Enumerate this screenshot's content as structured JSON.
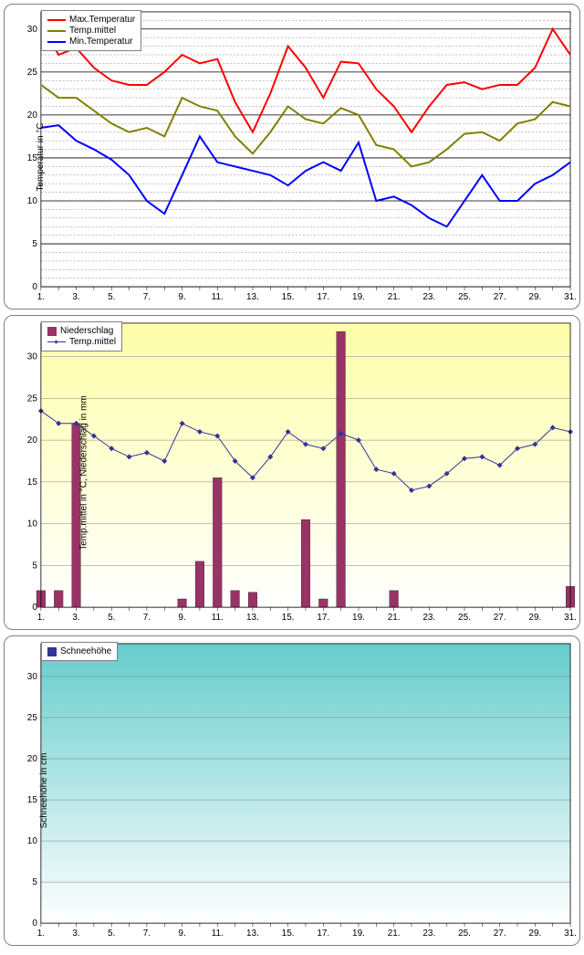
{
  "days": [
    1,
    2,
    3,
    4,
    5,
    6,
    7,
    8,
    9,
    10,
    11,
    12,
    13,
    14,
    15,
    16,
    17,
    18,
    19,
    20,
    21,
    22,
    23,
    24,
    25,
    26,
    27,
    28,
    29,
    30,
    31
  ],
  "xtick_labels": [
    "1.",
    "3.",
    "5.",
    "7.",
    "9.",
    "11.",
    "13.",
    "15.",
    "17.",
    "19.",
    "21.",
    "23.",
    "25.",
    "27.",
    "29.",
    "31."
  ],
  "xtick_days": [
    1,
    3,
    5,
    7,
    9,
    11,
    13,
    15,
    17,
    19,
    21,
    23,
    25,
    27,
    29,
    31
  ],
  "chart1": {
    "type": "line",
    "ylabel": "Temperatur in °C",
    "ylim": [
      0,
      32
    ],
    "ytick_step_major": 5,
    "ytick_step_minor": 1,
    "background": "#ffffff",
    "grid_major_color": "#000000",
    "grid_minor_color": "#808080",
    "grid_minor_dash": "2,2",
    "label_fontsize": 10,
    "tick_fontsize": 10,
    "line_width": 2,
    "series": [
      {
        "key": "max",
        "label": "Max.Temperatur",
        "color": "#ff0000",
        "values": [
          30.5,
          27.0,
          27.8,
          25.5,
          24.0,
          23.5,
          23.5,
          25.0,
          27.0,
          26.0,
          26.5,
          21.5,
          18.0,
          22.5,
          28.0,
          25.5,
          22.0,
          26.2,
          26.0,
          23.0,
          21.0,
          18.0,
          21.0,
          23.5,
          23.8,
          23.0,
          23.5,
          23.5,
          25.5,
          30.0,
          27.0
        ]
      },
      {
        "key": "mittel",
        "label": "Temp.mittel",
        "color": "#808000",
        "values": [
          23.5,
          22.0,
          22.0,
          20.5,
          19.0,
          18.0,
          18.5,
          17.5,
          22.0,
          21.0,
          20.5,
          17.5,
          15.5,
          18.0,
          21.0,
          19.5,
          19.0,
          20.8,
          20.0,
          16.5,
          16.0,
          14.0,
          14.5,
          16.0,
          17.8,
          18.0,
          17.0,
          19.0,
          19.5,
          21.5,
          21.0
        ]
      },
      {
        "key": "min",
        "label": "Min.Temperatur",
        "color": "#0000ff",
        "values": [
          18.5,
          18.8,
          17.0,
          16.0,
          14.8,
          13.0,
          10.0,
          8.5,
          13.0,
          17.5,
          14.5,
          14.0,
          13.5,
          13.0,
          11.8,
          13.5,
          14.5,
          13.5,
          16.8,
          10.0,
          10.5,
          9.5,
          8.0,
          7.0,
          10.0,
          13.0,
          10.0,
          10.0,
          12.0,
          13.0,
          14.5
        ]
      }
    ]
  },
  "chart2": {
    "type": "bar+line",
    "ylabel": "Temp.mittel  in °C, Niederschlag  in mm",
    "ylim": [
      0,
      34
    ],
    "ytick_step": 5,
    "background_gradient": [
      "#feffa7",
      "#ffffff"
    ],
    "grid_color": "#808080",
    "label_fontsize": 10,
    "tick_fontsize": 10,
    "bar_width": 0.5,
    "bar": {
      "label": "Niederschlag",
      "color": "#993366",
      "values": [
        2.0,
        2.0,
        22.0,
        0,
        0,
        0,
        0,
        0,
        1.0,
        5.5,
        15.5,
        2.0,
        1.8,
        0,
        0,
        10.5,
        1.0,
        33.0,
        0,
        0,
        2.0,
        0,
        0,
        0,
        0,
        0,
        0,
        0,
        0,
        0,
        2.5
      ]
    },
    "line": {
      "label": "Temp.mittel",
      "color": "#333399",
      "width": 1,
      "marker": "diamond",
      "marker_size": 3,
      "values": [
        23.5,
        22.0,
        22.0,
        20.5,
        19.0,
        18.0,
        18.5,
        17.5,
        22.0,
        21.0,
        20.5,
        17.5,
        15.5,
        18.0,
        21.0,
        19.5,
        19.0,
        20.8,
        20.0,
        16.5,
        16.0,
        14.0,
        14.5,
        16.0,
        17.8,
        18.0,
        17.0,
        19.0,
        19.5,
        21.5,
        21.0
      ]
    }
  },
  "chart3": {
    "type": "bar",
    "ylabel": "Schneehöhe in cm",
    "ylim": [
      0,
      34
    ],
    "ytick_step": 5,
    "background_gradient": [
      "#66cccc",
      "#ffffff"
    ],
    "grid_color": "#808080",
    "label_fontsize": 10,
    "tick_fontsize": 10,
    "series": {
      "label": "Schneehöhe",
      "color": "#333399",
      "values": [
        0,
        0,
        0,
        0,
        0,
        0,
        0,
        0,
        0,
        0,
        0,
        0,
        0,
        0,
        0,
        0,
        0,
        0,
        0,
        0,
        0,
        0,
        0,
        0,
        0,
        0,
        0,
        0,
        0,
        0,
        0
      ]
    }
  }
}
